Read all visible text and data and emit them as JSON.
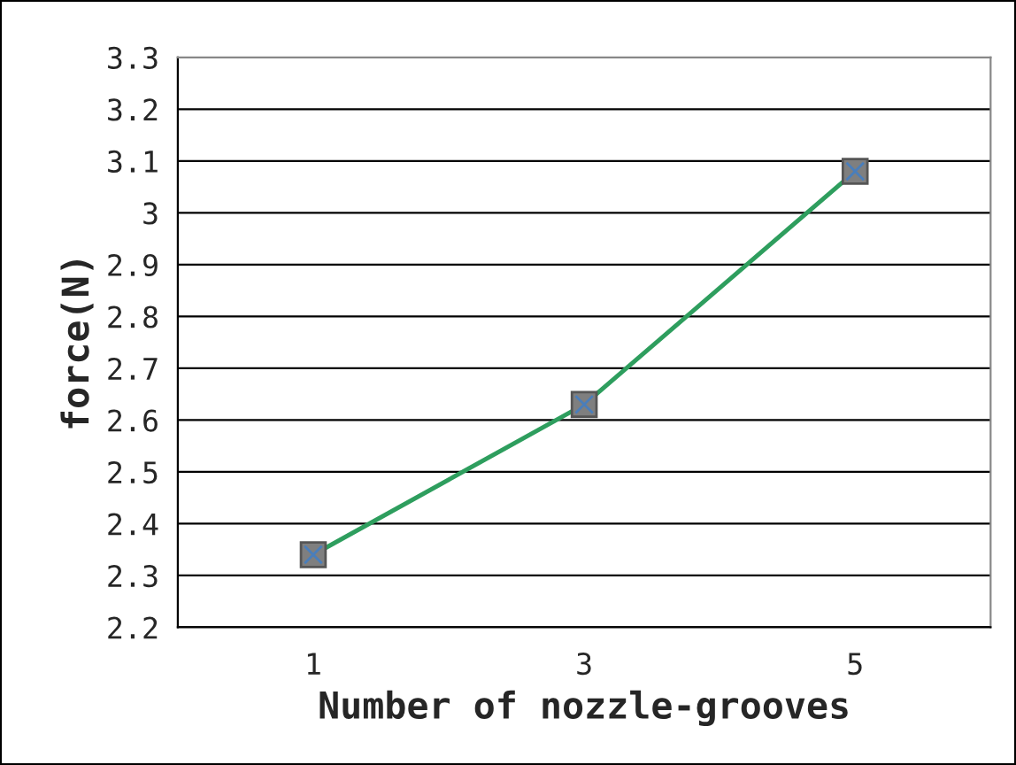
{
  "chart_data": {
    "type": "line",
    "xlabel": "Number of nozzle-grooves",
    "ylabel": "force(N)",
    "categories": [
      "1",
      "3",
      "5"
    ],
    "series": [
      {
        "color": "#2e9e5e",
        "values": [
          2.34,
          2.63,
          3.08
        ]
      }
    ],
    "ylim": [
      2.2,
      3.3
    ],
    "yticks": [
      2.2,
      2.3,
      2.4,
      2.5,
      2.6,
      2.7,
      2.8,
      2.9,
      3,
      3.1,
      3.2,
      3.3
    ],
    "grid": "y",
    "marker": "square",
    "line_style": "solid",
    "legend": false
  }
}
